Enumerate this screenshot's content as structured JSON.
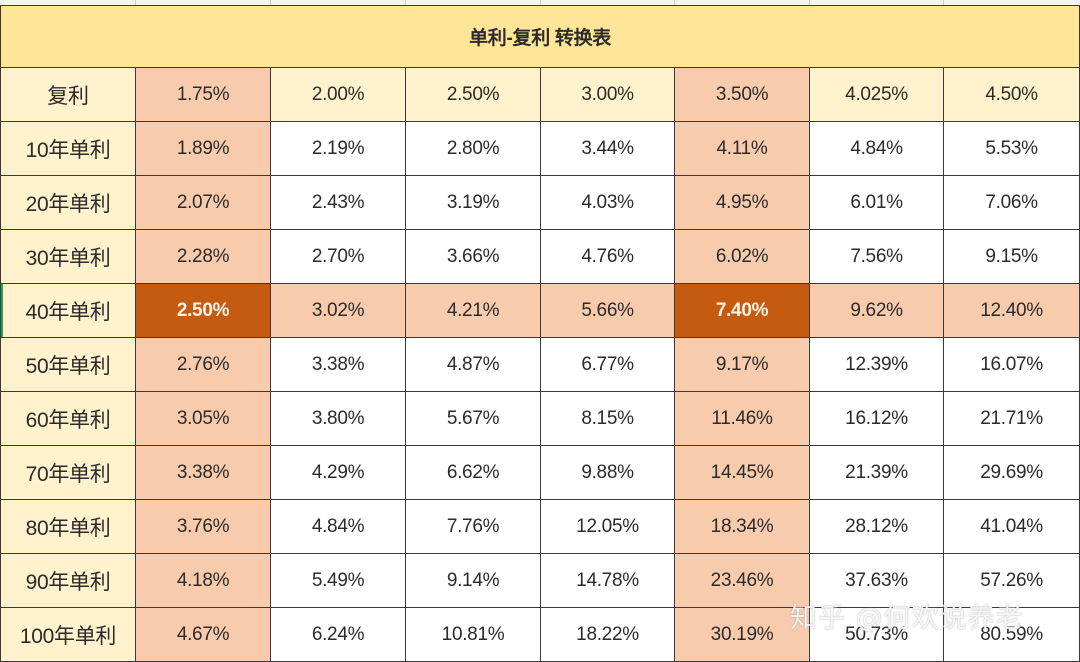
{
  "table": {
    "title": "单利-复利  转换表",
    "header_label": "复利",
    "compound_rates": [
      "1.75%",
      "2.00%",
      "2.50%",
      "3.00%",
      "3.50%",
      "4.025%",
      "4.50%"
    ],
    "rows": [
      {
        "label": "10年单利",
        "values": [
          "1.89%",
          "2.19%",
          "2.80%",
          "3.44%",
          "4.11%",
          "4.84%",
          "5.53%"
        ]
      },
      {
        "label": "20年单利",
        "values": [
          "2.07%",
          "2.43%",
          "3.19%",
          "4.03%",
          "4.95%",
          "6.01%",
          "7.06%"
        ]
      },
      {
        "label": "30年单利",
        "values": [
          "2.28%",
          "2.70%",
          "3.66%",
          "4.76%",
          "6.02%",
          "7.56%",
          "9.15%"
        ]
      },
      {
        "label": "40年单利",
        "values": [
          "2.50%",
          "3.02%",
          "4.21%",
          "5.66%",
          "7.40%",
          "9.62%",
          "12.40%"
        ]
      },
      {
        "label": "50年单利",
        "values": [
          "2.76%",
          "3.38%",
          "4.87%",
          "6.77%",
          "9.17%",
          "12.39%",
          "16.07%"
        ]
      },
      {
        "label": "60年单利",
        "values": [
          "3.05%",
          "3.80%",
          "5.67%",
          "8.15%",
          "11.46%",
          "16.12%",
          "21.71%"
        ]
      },
      {
        "label": "70年单利",
        "values": [
          "3.38%",
          "4.29%",
          "6.62%",
          "9.88%",
          "14.45%",
          "21.39%",
          "29.69%"
        ]
      },
      {
        "label": "80年单利",
        "values": [
          "3.76%",
          "4.84%",
          "7.76%",
          "12.05%",
          "18.34%",
          "28.12%",
          "41.04%"
        ]
      },
      {
        "label": "90年单利",
        "values": [
          "4.18%",
          "5.49%",
          "9.14%",
          "14.78%",
          "23.46%",
          "37.63%",
          "57.26%"
        ]
      },
      {
        "label": "100年单利",
        "values": [
          "4.67%",
          "6.24%",
          "10.81%",
          "18.22%",
          "30.19%",
          "50.73%",
          "80.59%"
        ]
      }
    ],
    "highlight": {
      "columns": [
        0,
        4
      ],
      "row": 3,
      "strong_cells": [
        [
          3,
          0
        ],
        [
          3,
          4
        ]
      ]
    },
    "colors": {
      "title_bg": "#ffe597",
      "label_bg": "#fff2cc",
      "highlight_bg": "#f8cbad",
      "strong_bg": "#c55a11",
      "strong_text": "#fdf3e6"
    }
  },
  "watermark": "知乎 @何欢说养老"
}
